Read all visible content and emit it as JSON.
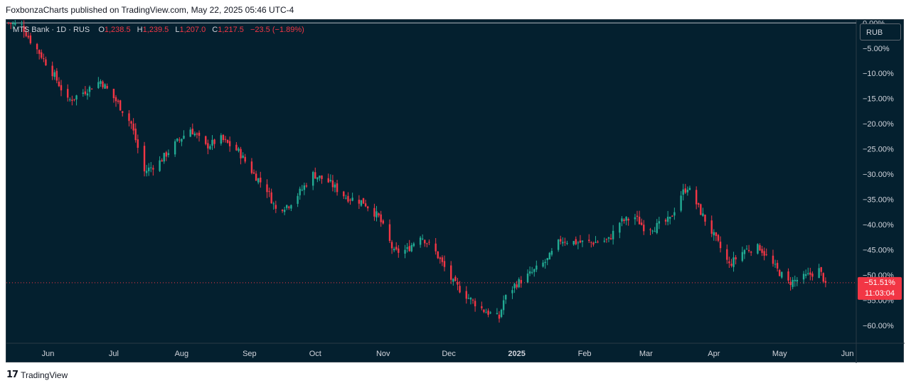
{
  "header": {
    "credit": "FoxbonzaCharts published on TradingView.com, May 22, 2025 05:46 UTC-4"
  },
  "legend": {
    "symbol": "MTS Bank · 1D · RUS",
    "open_label": "O",
    "open": "1,238.5",
    "high_label": "H",
    "high": "1,239.5",
    "low_label": "L",
    "low": "1,207.0",
    "close_label": "C",
    "close": "1,217.5",
    "change": "−23.5 (−1.89%)"
  },
  "currency_button": "RUB",
  "footer": {
    "logo_text": "TradingView",
    "logo_mark": "17"
  },
  "colors": {
    "background": "#04202f",
    "up": "#22ab94",
    "down": "#f23645",
    "axis_text": "#d1d4dc",
    "zero_line": "#b2b5be"
  },
  "chart_data": {
    "type": "candlestick",
    "scale": "percent",
    "y_ticks": [
      "0.00%",
      "−5.00%",
      "−10.00%",
      "−15.00%",
      "−20.00%",
      "−25.00%",
      "−30.00%",
      "−35.00%",
      "−40.00%",
      "−45.00%",
      "−50.00%",
      "−55.00%",
      "−60.00%"
    ],
    "y_tick_values": [
      0,
      -5,
      -10,
      -15,
      -20,
      -25,
      -30,
      -35,
      -40,
      -45,
      -50,
      -55,
      -60
    ],
    "ylim": [
      -63.5,
      0.6
    ],
    "x_ticks": [
      "Jun",
      "Jul",
      "Aug",
      "Sep",
      "Oct",
      "Nov",
      "Dec",
      "2025",
      "Feb",
      "Mar",
      "Apr",
      "May",
      "Jun"
    ],
    "x_tick_dates": [
      "2024-06-01",
      "2024-07-01",
      "2024-08-01",
      "2024-09-01",
      "2024-10-01",
      "2024-11-01",
      "2024-12-01",
      "2025-01-01",
      "2025-02-01",
      "2025-03-01",
      "2025-04-01",
      "2025-05-01",
      "2025-06-01"
    ],
    "xlim": [
      "2024-05-13",
      "2025-06-05"
    ],
    "last_value_label": "−51.51%",
    "countdown_label": "11:03:04",
    "last_value": -51.51,
    "path_anchors": [
      {
        "date": "2024-05-14",
        "value": 0.0
      },
      {
        "date": "2024-05-20",
        "value": -0.5
      },
      {
        "date": "2024-05-24",
        "value": -3.5
      },
      {
        "date": "2024-05-29",
        "value": -6.5
      },
      {
        "date": "2024-06-04",
        "value": -10.5
      },
      {
        "date": "2024-06-10",
        "value": -15.5
      },
      {
        "date": "2024-06-18",
        "value": -13.5
      },
      {
        "date": "2024-06-25",
        "value": -11.5
      },
      {
        "date": "2024-07-03",
        "value": -16.0
      },
      {
        "date": "2024-07-09",
        "value": -20.0
      },
      {
        "date": "2024-07-15",
        "value": -29.5
      },
      {
        "date": "2024-07-22",
        "value": -27.5
      },
      {
        "date": "2024-07-29",
        "value": -24.0
      },
      {
        "date": "2024-08-05",
        "value": -21.0
      },
      {
        "date": "2024-08-12",
        "value": -24.5
      },
      {
        "date": "2024-08-19",
        "value": -23.0
      },
      {
        "date": "2024-08-27",
        "value": -25.5
      },
      {
        "date": "2024-09-03",
        "value": -30.0
      },
      {
        "date": "2024-09-09",
        "value": -33.0
      },
      {
        "date": "2024-09-13",
        "value": -37.0
      },
      {
        "date": "2024-09-19",
        "value": -36.0
      },
      {
        "date": "2024-09-25",
        "value": -33.0
      },
      {
        "date": "2024-09-30",
        "value": -30.0
      },
      {
        "date": "2024-10-07",
        "value": -31.5
      },
      {
        "date": "2024-10-15",
        "value": -34.5
      },
      {
        "date": "2024-10-23",
        "value": -35.5
      },
      {
        "date": "2024-10-30",
        "value": -38.5
      },
      {
        "date": "2024-11-06",
        "value": -45.5
      },
      {
        "date": "2024-11-12",
        "value": -45.0
      },
      {
        "date": "2024-11-18",
        "value": -42.0
      },
      {
        "date": "2024-11-25",
        "value": -45.5
      },
      {
        "date": "2024-12-03",
        "value": -51.5
      },
      {
        "date": "2024-12-10",
        "value": -54.5
      },
      {
        "date": "2024-12-17",
        "value": -57.0
      },
      {
        "date": "2024-12-24",
        "value": -58.5
      },
      {
        "date": "2024-12-26",
        "value": -55.0
      },
      {
        "date": "2024-12-31",
        "value": -52.0
      },
      {
        "date": "2025-01-08",
        "value": -49.5
      },
      {
        "date": "2025-01-15",
        "value": -47.0
      },
      {
        "date": "2025-01-21",
        "value": -43.0
      },
      {
        "date": "2025-01-28",
        "value": -43.5
      },
      {
        "date": "2025-02-05",
        "value": -43.5
      },
      {
        "date": "2025-02-12",
        "value": -43.0
      },
      {
        "date": "2025-02-17",
        "value": -39.5
      },
      {
        "date": "2025-02-24",
        "value": -38.5
      },
      {
        "date": "2025-02-28",
        "value": -40.5
      },
      {
        "date": "2025-03-05",
        "value": -40.5
      },
      {
        "date": "2025-03-12",
        "value": -39.0
      },
      {
        "date": "2025-03-17",
        "value": -34.0
      },
      {
        "date": "2025-03-20",
        "value": -32.5
      },
      {
        "date": "2025-03-26",
        "value": -37.5
      },
      {
        "date": "2025-04-02",
        "value": -43.0
      },
      {
        "date": "2025-04-08",
        "value": -48.0
      },
      {
        "date": "2025-04-15",
        "value": -45.0
      },
      {
        "date": "2025-04-22",
        "value": -44.5
      },
      {
        "date": "2025-04-28",
        "value": -48.0
      },
      {
        "date": "2025-05-05",
        "value": -51.5
      },
      {
        "date": "2025-05-12",
        "value": -50.5
      },
      {
        "date": "2025-05-19",
        "value": -49.0
      },
      {
        "date": "2025-05-22",
        "value": -51.51
      }
    ]
  }
}
